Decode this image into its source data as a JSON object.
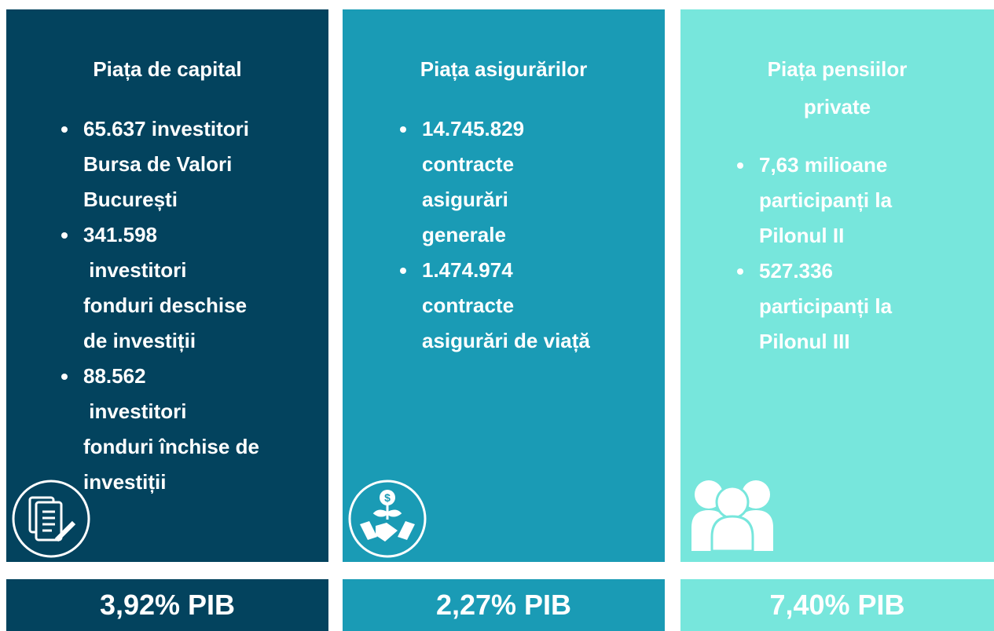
{
  "columns": [
    {
      "title": "Piața de capital",
      "items": [
        [
          "65.637 investitori",
          "Bursa de Valori",
          "București"
        ],
        [
          "341.598",
          " investitori",
          "fonduri deschise",
          "de investiții"
        ],
        [
          "88.562",
          " investitori",
          "fonduri închise de",
          "investiții"
        ]
      ],
      "footer": "3,92% PIB"
    },
    {
      "title": "Piața asigurărilor",
      "items": [
        [
          "14.745.829",
          "contracte",
          "asigurări",
          "generale"
        ],
        [
          "1.474.974",
          "contracte",
          "asigurări de viață"
        ]
      ],
      "footer": "2,27% PIB"
    },
    {
      "title": "Piața pensiilor private",
      "items": [
        [
          "7,63 milioane",
          "participanți la",
          "Pilonul II"
        ],
        [
          "527.336",
          "participanți la",
          "Pilonul III"
        ]
      ],
      "footer": "7,40% PIB"
    }
  ]
}
